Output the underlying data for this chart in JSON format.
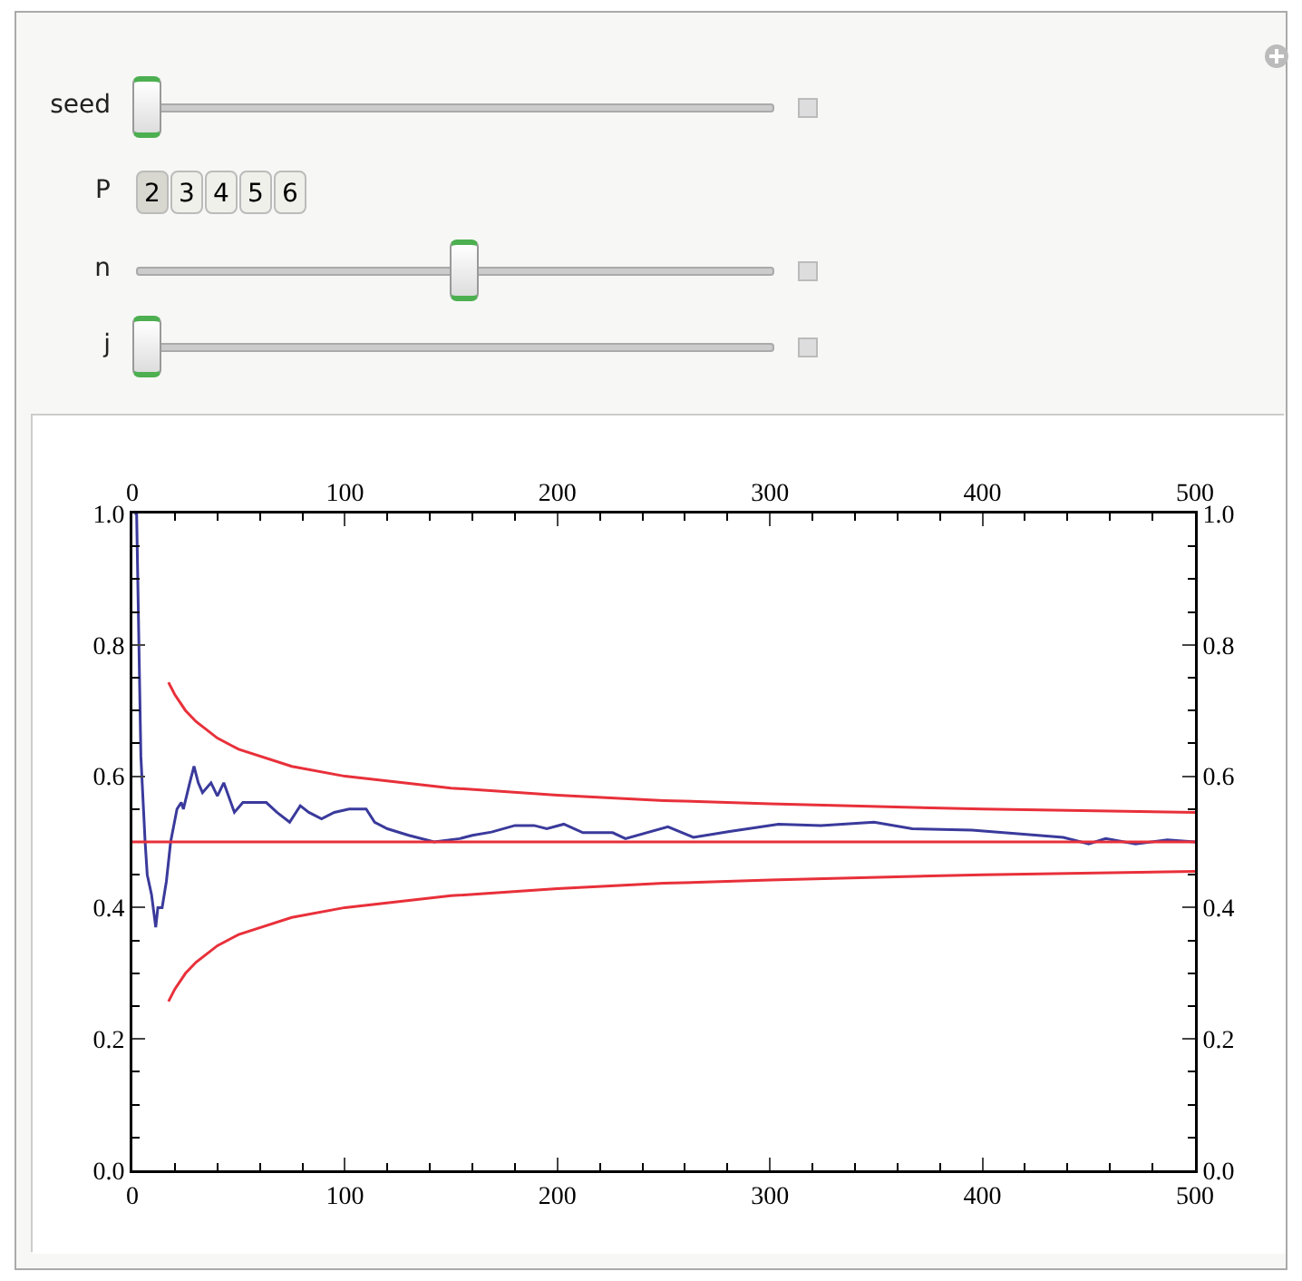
{
  "chart_data": {
    "type": "line",
    "annotations": [
      "seed",
      "P",
      "2",
      "3",
      "4",
      "5",
      "6",
      "n",
      "j"
    ],
    "xlim": [
      0,
      500
    ],
    "x2lim": [
      0,
      500
    ],
    "ylim": [
      0,
      1
    ],
    "y2lim": [
      0,
      1
    ],
    "xticks": [
      0,
      {
        "value": 20,
        "label": null
      },
      {
        "value": 40,
        "label": null
      },
      {
        "value": 60,
        "label": null
      },
      {
        "value": 80,
        "label": null
      },
      100,
      {
        "value": 120,
        "label": null
      },
      {
        "value": 140,
        "label": null
      },
      {
        "value": 160,
        "label": null
      },
      {
        "value": 180,
        "label": null
      },
      200,
      {
        "value": 220,
        "label": null
      },
      {
        "value": 240,
        "label": null
      },
      {
        "value": 260,
        "label": null
      },
      {
        "value": 280,
        "label": null
      },
      300,
      {
        "value": 320,
        "label": null
      },
      {
        "value": 340,
        "label": null
      },
      {
        "value": 360,
        "label": null
      },
      {
        "value": 380,
        "label": null
      },
      400,
      {
        "value": 420,
        "label": null
      },
      {
        "value": 440,
        "label": null
      },
      {
        "value": 460,
        "label": null
      },
      {
        "value": 480,
        "label": null
      },
      500
    ],
    "x2ticks": [
      0,
      {
        "value": 20,
        "label": null
      },
      {
        "value": 40,
        "label": null
      },
      {
        "value": 60,
        "label": null
      },
      {
        "value": 80,
        "label": null
      },
      100,
      {
        "value": 120,
        "label": null
      },
      {
        "value": 140,
        "label": null
      },
      {
        "value": 160,
        "label": null
      },
      {
        "value": 180,
        "label": null
      },
      200,
      {
        "value": 220,
        "label": null
      },
      {
        "value": 240,
        "label": null
      },
      {
        "value": 260,
        "label": null
      },
      {
        "value": 280,
        "label": null
      },
      300,
      {
        "value": 320,
        "label": null
      },
      {
        "value": 340,
        "label": null
      },
      {
        "value": 360,
        "label": null
      },
      {
        "value": 380,
        "label": null
      },
      400,
      {
        "value": 420,
        "label": null
      },
      {
        "value": 440,
        "label": null
      },
      {
        "value": 460,
        "label": null
      },
      {
        "value": 480,
        "label": null
      },
      500
    ],
    "yticks": [
      {
        "value": 0,
        "label": "0.0"
      },
      {
        "value": 0.05,
        "label": null
      },
      {
        "value": 0.1,
        "label": null
      },
      {
        "value": 0.15,
        "label": null
      },
      0.2,
      {
        "value": 0.25,
        "label": null
      },
      {
        "value": 0.3,
        "label": null
      },
      {
        "value": 0.35,
        "label": null
      },
      0.4,
      {
        "value": 0.45,
        "label": null
      },
      {
        "value": 0.5,
        "label": null
      },
      {
        "value": 0.55,
        "label": null
      },
      0.6,
      {
        "value": 0.65,
        "label": null
      },
      {
        "value": 0.7,
        "label": null
      },
      {
        "value": 0.75,
        "label": null
      },
      0.8,
      {
        "value": 0.85,
        "label": null
      },
      {
        "value": 0.9,
        "label": null
      },
      {
        "value": 0.95,
        "label": null
      },
      {
        "value": 1,
        "label": "1.0"
      }
    ],
    "y2ticks": [
      {
        "value": 0,
        "label": "0.0"
      },
      {
        "value": 0.05,
        "label": null
      },
      {
        "value": 0.1,
        "label": null
      },
      {
        "value": 0.15,
        "label": null
      },
      0.2,
      {
        "value": 0.25,
        "label": null
      },
      {
        "value": 0.3,
        "label": null
      },
      {
        "value": 0.35,
        "label": null
      },
      0.4,
      {
        "value": 0.45,
        "label": null
      },
      {
        "value": 0.5,
        "label": null
      },
      {
        "value": 0.55,
        "label": null
      },
      0.6,
      {
        "value": 0.65,
        "label": null
      },
      {
        "value": 0.7,
        "label": null
      },
      {
        "value": 0.75,
        "label": null
      },
      0.8,
      {
        "value": 0.85,
        "label": null
      },
      {
        "value": 0.9,
        "label": null
      },
      {
        "value": 0.95,
        "label": null
      },
      {
        "value": 1,
        "label": "1.0"
      }
    ],
    "grid": false,
    "marker": "none",
    "line_style": "solid",
    "ref_lines": [
      {
        "axis": "y",
        "value": 0.5,
        "color": "#e8303a"
      }
    ],
    "series": [
      {
        "color": "#3a3a9c",
        "x": [
          1,
          2,
          4,
          6,
          7,
          9,
          11,
          12,
          14,
          16,
          18,
          21,
          23,
          24,
          27,
          29,
          31,
          33,
          37,
          40,
          43,
          48,
          52,
          57,
          63,
          68,
          74,
          79,
          83,
          89,
          95,
          102,
          110,
          114,
          120,
          130,
          142,
          154,
          160,
          169,
          180,
          189,
          195,
          203,
          212,
          226,
          232,
          252,
          264,
          281,
          304,
          324,
          349,
          367,
          395,
          418,
          438,
          450,
          458,
          472,
          487,
          500
        ],
        "values": [
          1.0,
          1.0,
          0.63,
          0.5,
          0.45,
          0.42,
          0.37,
          0.4,
          0.4,
          0.44,
          0.5,
          0.55,
          0.56,
          0.55,
          0.59,
          0.615,
          0.59,
          0.575,
          0.59,
          0.57,
          0.59,
          0.545,
          0.56,
          0.56,
          0.56,
          0.545,
          0.53,
          0.555,
          0.545,
          0.535,
          0.545,
          0.55,
          0.55,
          0.53,
          0.52,
          0.51,
          0.5,
          0.505,
          0.51,
          0.515,
          0.525,
          0.525,
          0.52,
          0.527,
          0.514,
          0.514,
          0.505,
          0.523,
          0.507,
          0.516,
          0.527,
          0.525,
          0.53,
          0.52,
          0.518,
          0.512,
          0.507,
          0.497,
          0.505,
          0.497,
          0.503,
          0.5
        ]
      },
      {
        "color": "#e8303a",
        "x": [
          17,
          20,
          25,
          30,
          40,
          50,
          75,
          100,
          150,
          200,
          250,
          300,
          400,
          500
        ],
        "values": [
          0.743,
          0.724,
          0.7,
          0.683,
          0.658,
          0.641,
          0.615,
          0.6,
          0.582,
          0.571,
          0.563,
          0.558,
          0.55,
          0.545
        ]
      },
      {
        "color": "#e8303a",
        "x": [
          17,
          20,
          25,
          30,
          40,
          50,
          75,
          100,
          150,
          200,
          250,
          300,
          400,
          500
        ],
        "values": [
          0.257,
          0.276,
          0.3,
          0.317,
          0.342,
          0.359,
          0.385,
          0.4,
          0.418,
          0.429,
          0.437,
          0.442,
          0.45,
          0.455
        ]
      }
    ]
  }
}
